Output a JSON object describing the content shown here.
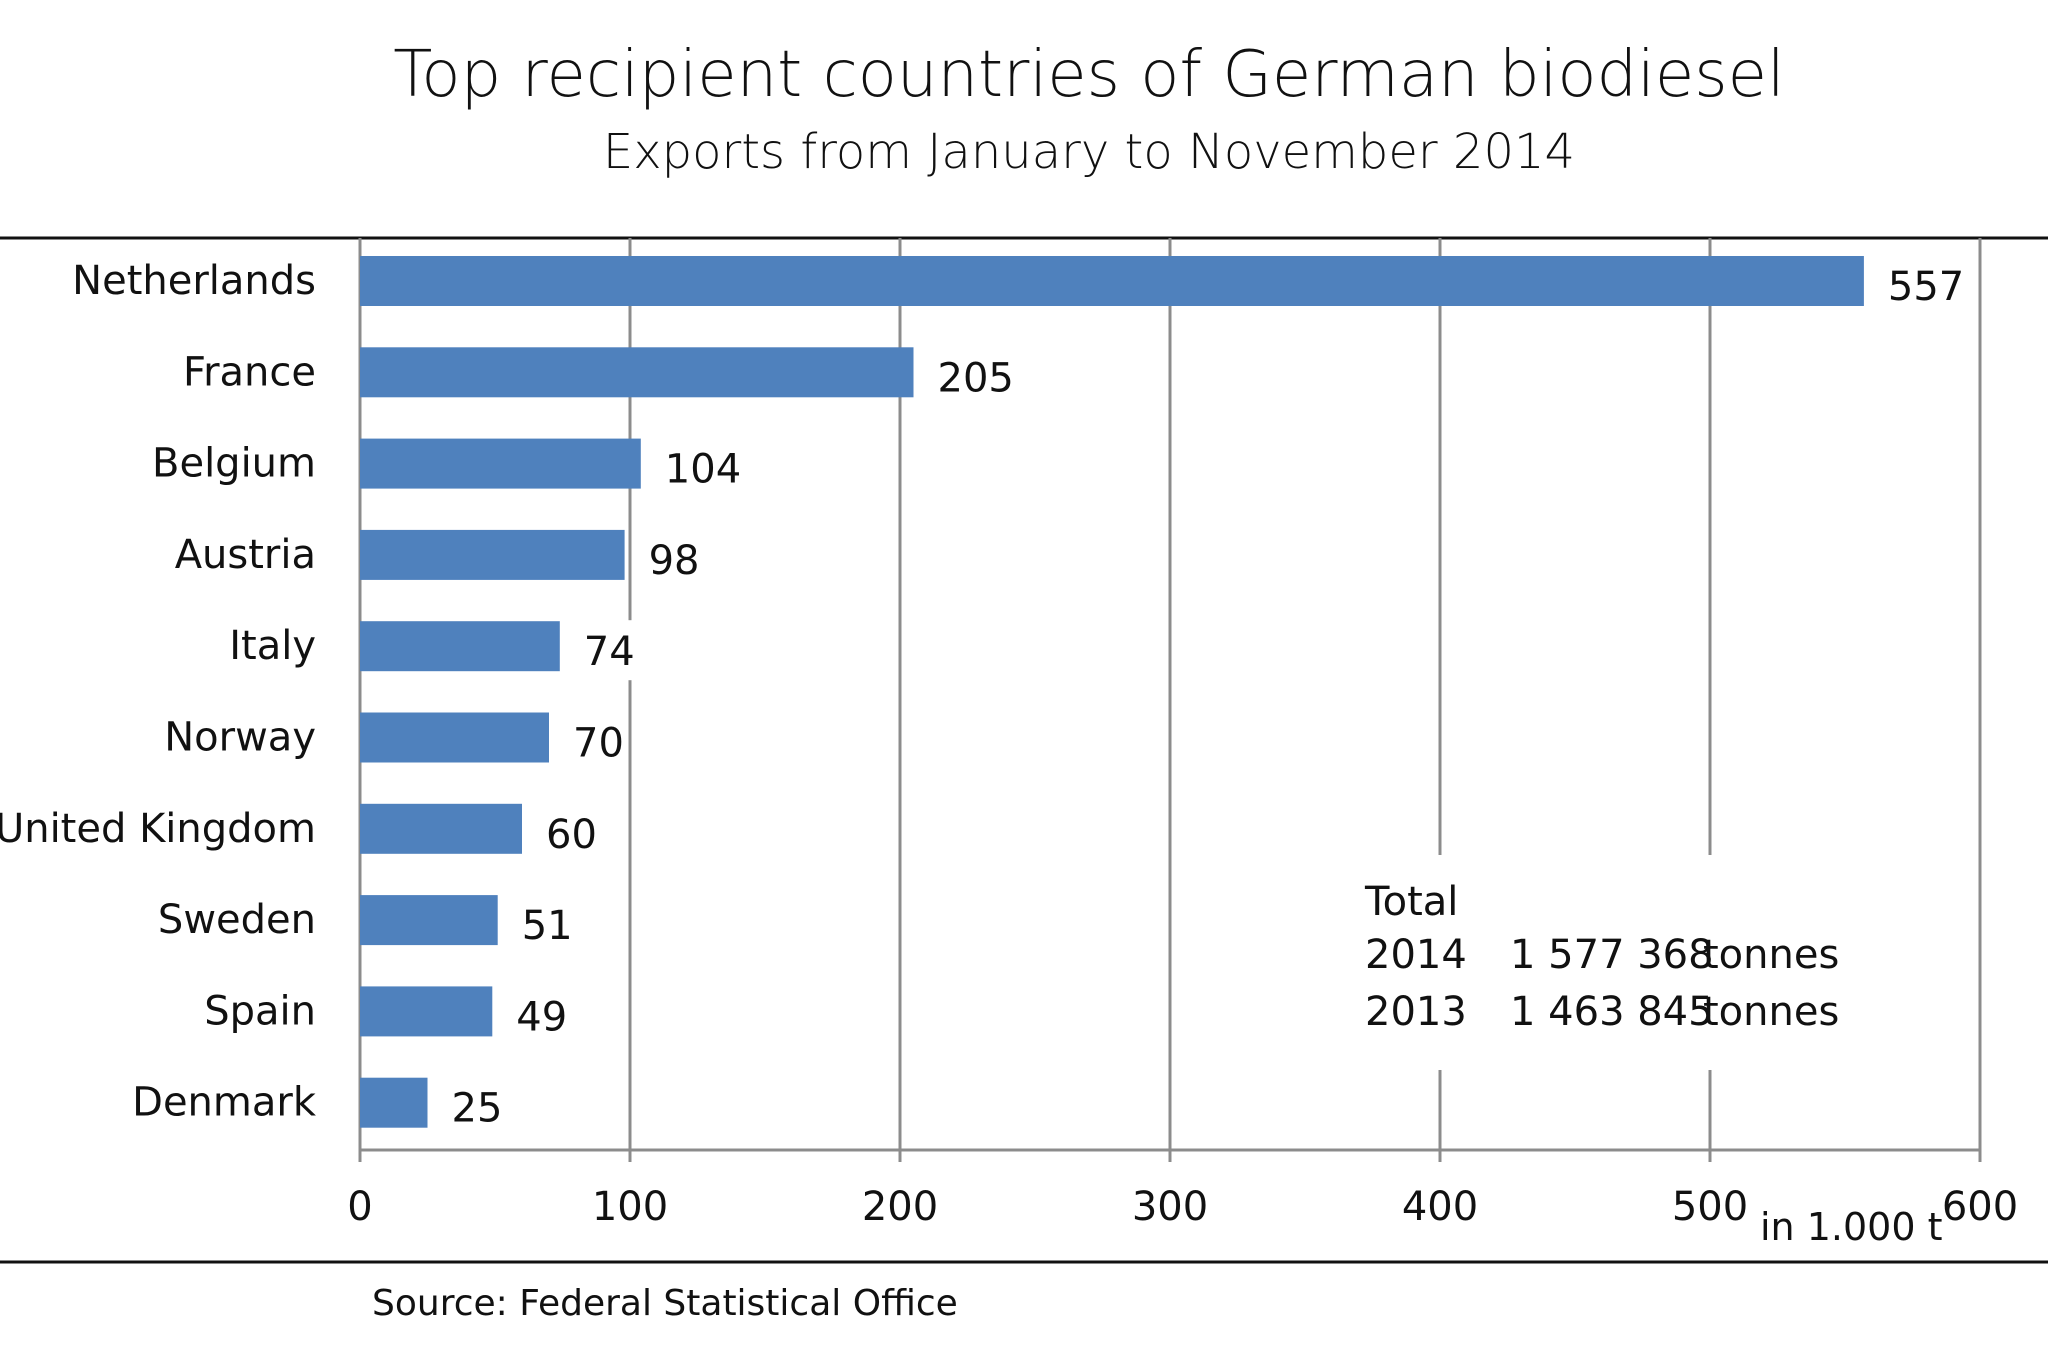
{
  "chart_data": {
    "type": "bar",
    "orientation": "horizontal",
    "title": "Top recipient countries  of German biodiesel",
    "subtitle": "Exports from January to November 2014",
    "categories": [
      "Netherlands",
      "France",
      "Belgium",
      "Austria",
      "Italy",
      "Norway",
      "United Kingdom",
      "Sweden",
      "Spain",
      "Denmark"
    ],
    "values": [
      557,
      205,
      104,
      98,
      74,
      70,
      60,
      51,
      49,
      25
    ],
    "value_labels": [
      "557",
      "205",
      "104",
      "98",
      "74",
      "70",
      "60",
      "51",
      "49",
      "25"
    ],
    "xlim": [
      0,
      600
    ],
    "xticks": [
      0,
      100,
      200,
      300,
      400,
      500,
      600
    ],
    "xtick_labels": [
      "0",
      "100",
      "200",
      "300",
      "400",
      "500",
      "600"
    ],
    "xlabel": "in 1.000  t",
    "grid": "vertical",
    "bar_color": "#4f81bd",
    "annotation": {
      "heading": "Total",
      "rows": [
        {
          "year": "2014",
          "amount": "1 577 368",
          "unit": "tonnes"
        },
        {
          "year": "2013",
          "amount": "1 463 845",
          "unit": "tonnes"
        }
      ]
    },
    "source": "Source: Federal Statistical Office"
  }
}
